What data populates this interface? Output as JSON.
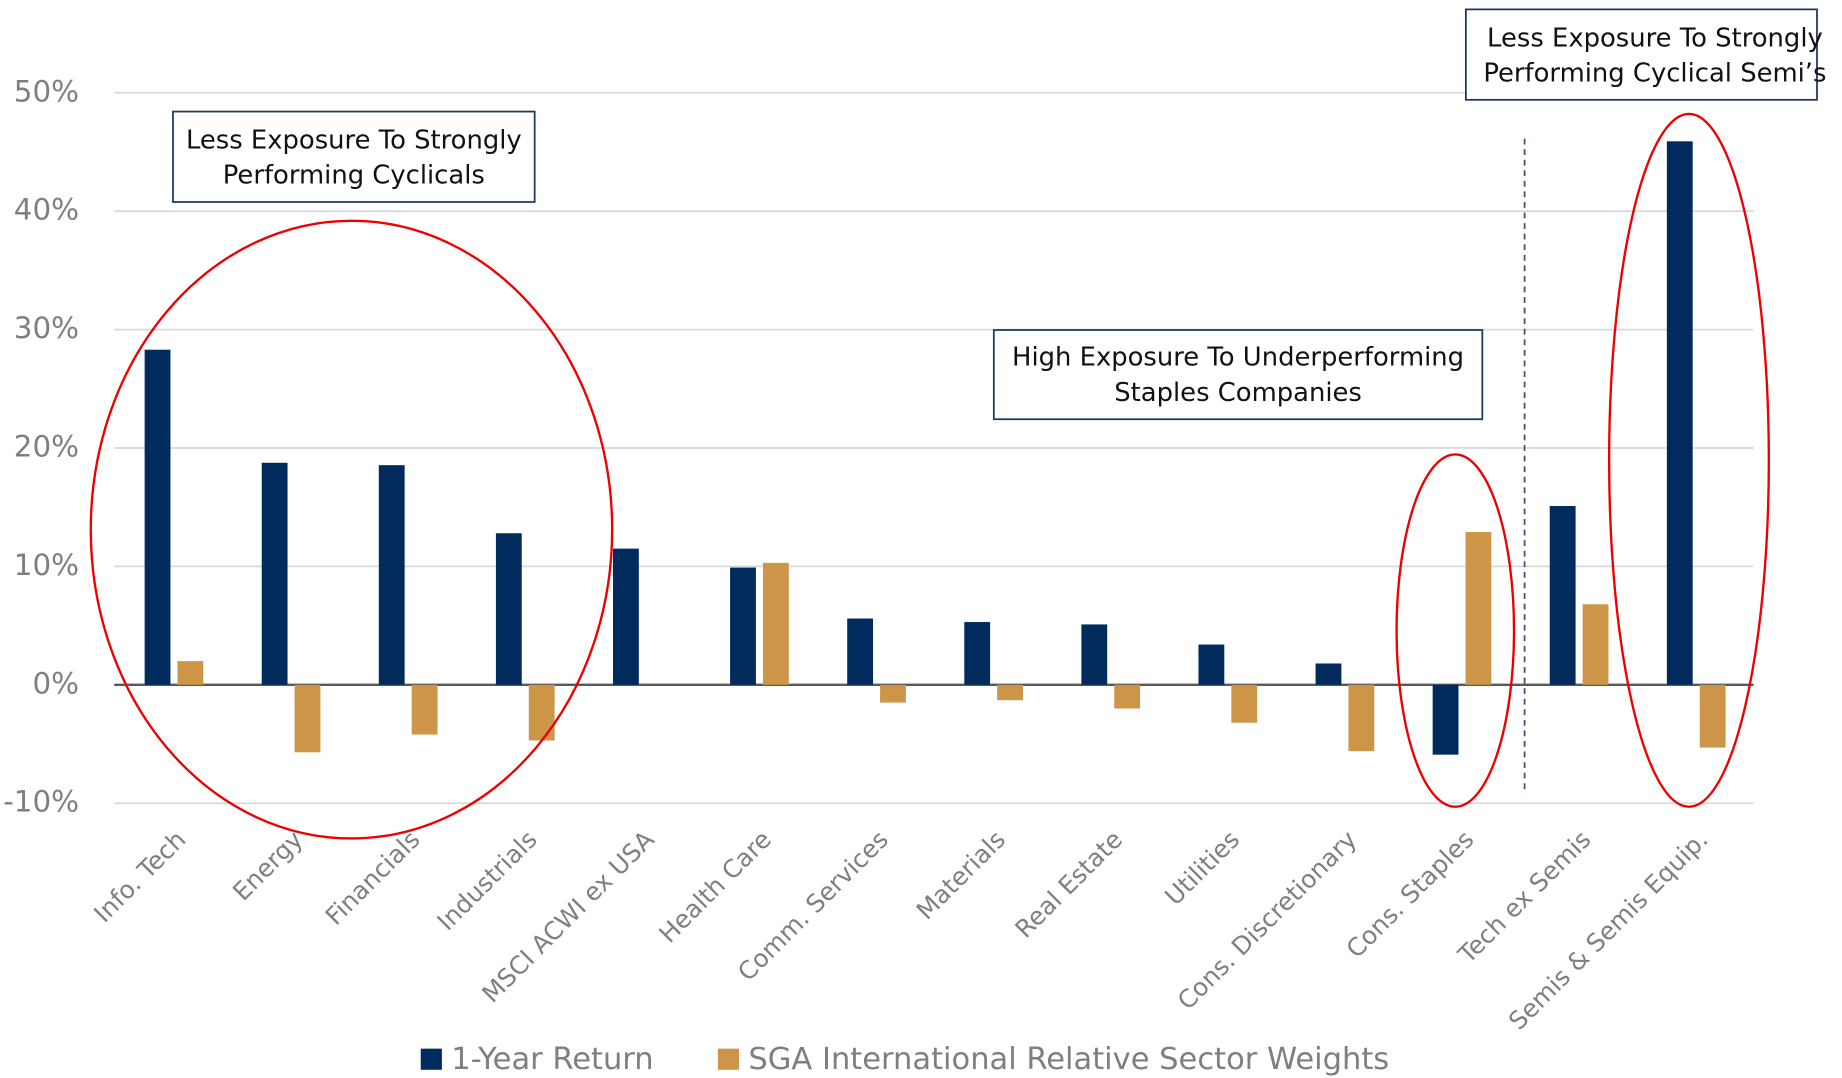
{
  "chart_data": {
    "type": "bar",
    "categories": [
      "Info. Tech",
      "Energy",
      "Financials",
      "Industrials",
      "MSCI ACWI ex USA",
      "Health Care",
      "Comm. Services",
      "Materials",
      "Real Estate",
      "Utilities",
      "Cons. Discretionary",
      "Cons. Staples",
      "Tech ex Semis",
      "Semis & Semis Equip."
    ],
    "series": [
      {
        "name": "1-Year Return",
        "color": "#002b5c",
        "values": [
          28.3,
          18.75,
          18.55,
          12.8,
          11.5,
          9.9,
          5.6,
          5.3,
          5.1,
          3.4,
          1.8,
          -5.9,
          15.1,
          45.9
        ]
      },
      {
        "name": "SGA International Relative Sector Weights",
        "color": "#cc9547",
        "values": [
          2.0,
          -5.7,
          -4.2,
          -4.7,
          0,
          10.3,
          -1.5,
          -1.3,
          -2.0,
          -3.2,
          -5.6,
          12.9,
          6.8,
          -5.3
        ]
      }
    ],
    "ylim": [
      -10,
      50
    ],
    "yticks": [
      {
        "value": -10,
        "label": "-10%"
      },
      {
        "value": 0,
        "label": "0%"
      },
      {
        "value": 10,
        "label": "10%"
      },
      {
        "value": 20,
        "label": "20%"
      },
      {
        "value": 30,
        "label": "30%"
      },
      {
        "value": 40,
        "label": "40%"
      },
      {
        "value": 50,
        "label": "50%"
      }
    ],
    "grid": true,
    "legend": "bottom",
    "annotations": [
      {
        "lines": [
          "Less Exposure To Strongly",
          "Performing Cyclicals"
        ]
      },
      {
        "lines": [
          "High Exposure To Underperforming",
          "Staples Companies"
        ]
      },
      {
        "lines": [
          "Less Exposure To Strongly",
          "Performing Cyclical Semi’s"
        ]
      }
    ]
  }
}
